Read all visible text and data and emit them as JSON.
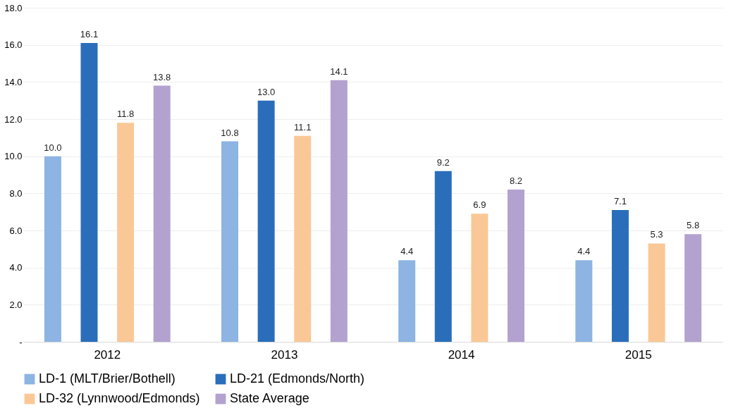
{
  "chart_data": {
    "type": "bar",
    "categories": [
      "2012",
      "2013",
      "2014",
      "2015"
    ],
    "series": [
      {
        "name": "LD-1 (MLT/Brier/Bothell)",
        "color": "#8db4e2",
        "values": [
          10.0,
          10.8,
          4.4,
          4.4
        ],
        "value_labels": [
          "10.0",
          "10.8",
          "4.4",
          "4.4"
        ]
      },
      {
        "name": "LD-21 (Edmonds/North)",
        "color": "#2a6ebb",
        "values": [
          16.1,
          13.0,
          9.2,
          7.1
        ],
        "value_labels": [
          "16.1",
          "13.0",
          "9.2",
          "7.1"
        ]
      },
      {
        "name": "LD-32 (Lynnwood/Edmonds)",
        "color": "#fac896",
        "values": [
          11.8,
          11.1,
          6.9,
          5.3
        ],
        "value_labels": [
          "11.8",
          "11.1",
          "6.9",
          "5.3"
        ]
      },
      {
        "name": "State Average",
        "color": "#b3a2cf",
        "values": [
          13.8,
          14.1,
          8.2,
          5.8
        ],
        "value_labels": [
          "13.8",
          "14.1",
          "8.2",
          "5.8"
        ]
      }
    ],
    "ylim": [
      0,
      18
    ],
    "yticks": [
      {
        "value": 0,
        "label": "-"
      },
      {
        "value": 2,
        "label": "2.0"
      },
      {
        "value": 4,
        "label": "4.0"
      },
      {
        "value": 6,
        "label": "6.0"
      },
      {
        "value": 8,
        "label": "8.0"
      },
      {
        "value": 10,
        "label": "10.0"
      },
      {
        "value": 12,
        "label": "12.0"
      },
      {
        "value": 14,
        "label": "14.0"
      },
      {
        "value": 16,
        "label": "16.0"
      },
      {
        "value": 18,
        "label": "18.0"
      }
    ],
    "grid": "y",
    "legend": "bottom"
  }
}
